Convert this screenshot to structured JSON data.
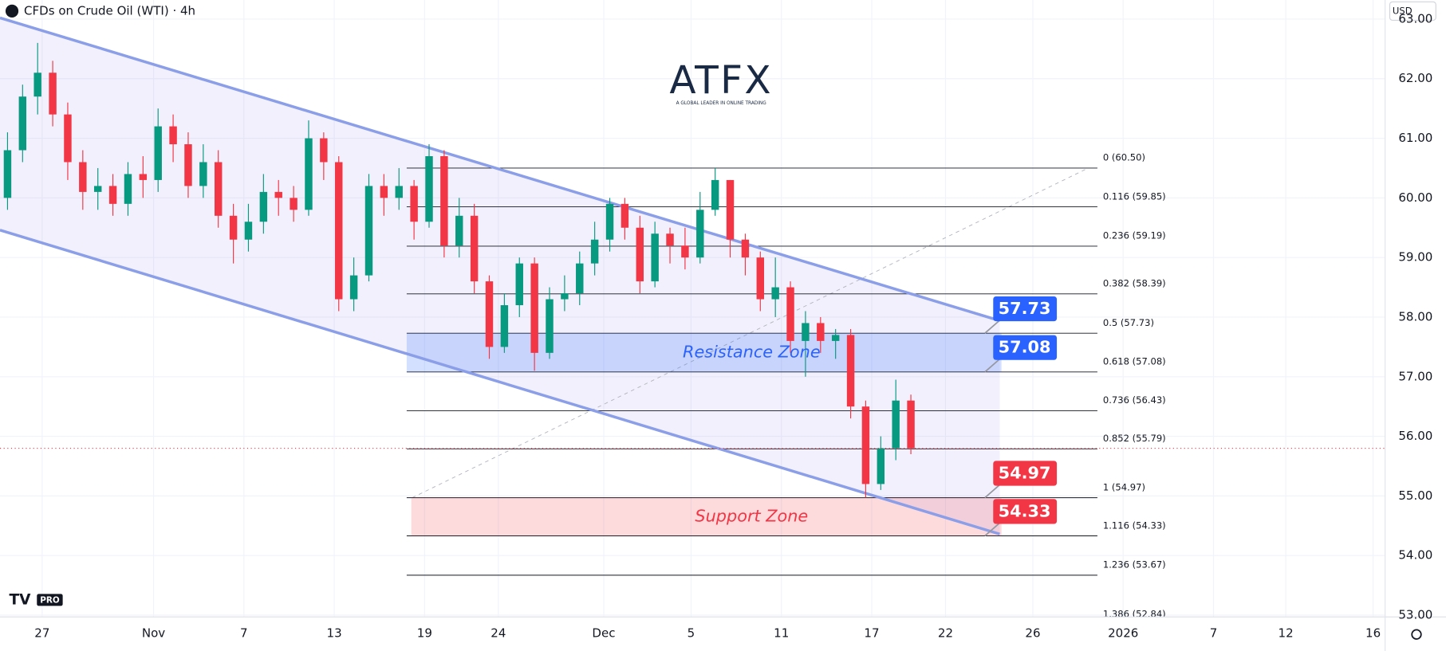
{
  "chart_data": {
    "type": "candlestick",
    "title": "CFDs on Crude Oil (WTI) · 4h",
    "currency": "USD",
    "logo": {
      "name": "ATFX",
      "tagline": "A GLOBAL LEADER IN ONLINE TRADING"
    },
    "badge": "PRO",
    "xlim": [
      0,
      92
    ],
    "xticks": [
      {
        "value": 2.8,
        "label": "27"
      },
      {
        "value": 10.2,
        "label": "Nov"
      },
      {
        "value": 16.2,
        "label": "7"
      },
      {
        "value": 22.2,
        "label": "13"
      },
      {
        "value": 28.2,
        "label": "19"
      },
      {
        "value": 33.1,
        "label": "24"
      },
      {
        "value": 40.1,
        "label": "Dec"
      },
      {
        "value": 45.9,
        "label": "5"
      },
      {
        "value": 51.9,
        "label": "11"
      },
      {
        "value": 57.9,
        "label": "17"
      },
      {
        "value": 62.8,
        "label": "22"
      },
      {
        "value": 68.6,
        "label": "26"
      },
      {
        "value": 74.6,
        "label": "2026"
      },
      {
        "value": 80.6,
        "label": "7"
      },
      {
        "value": 85.4,
        "label": "12"
      },
      {
        "value": 91.2,
        "label": "16"
      }
    ],
    "ylim": [
      52.97,
      63.32
    ],
    "yticks": [
      {
        "value": 53,
        "label": "53.00"
      },
      {
        "value": 54,
        "label": "54.00"
      },
      {
        "value": 55,
        "label": "55.00"
      },
      {
        "value": 56,
        "label": "56.00"
      },
      {
        "value": 57,
        "label": "57.00"
      },
      {
        "value": 58,
        "label": "58.00"
      },
      {
        "value": 59,
        "label": "59.00"
      },
      {
        "value": 60,
        "label": "60.00"
      },
      {
        "value": 61,
        "label": "61.00"
      },
      {
        "value": 62,
        "label": "62.00"
      },
      {
        "value": 63,
        "label": "63.00"
      }
    ],
    "grid": true,
    "up_color": "#089981",
    "down_color": "#f23645",
    "x": [
      0.5,
      1.5,
      2.5,
      3.5,
      4.5,
      5.5,
      6.5,
      7.5,
      8.5,
      9.5,
      10.5,
      11.5,
      12.5,
      13.5,
      14.5,
      15.5,
      16.5,
      17.5,
      18.5,
      19.5,
      20.5,
      21.5,
      22.5,
      23.5,
      24.5,
      25.5,
      26.5,
      27.5,
      28.5,
      29.5,
      30.5,
      31.5,
      32.5,
      33.5,
      34.5,
      35.5,
      36.5,
      37.5,
      38.5,
      39.5,
      40.5,
      41.5,
      42.5,
      43.5,
      44.5,
      45.5,
      46.5,
      47.5,
      48.5,
      49.5,
      50.5,
      51.5,
      52.5,
      53.5,
      54.5,
      55.5,
      56.5,
      57.5,
      58.5,
      59.5,
      60.5
    ],
    "open": [
      60.0,
      60.8,
      61.7,
      62.1,
      61.4,
      60.6,
      60.1,
      60.2,
      59.9,
      60.4,
      60.3,
      61.2,
      60.9,
      60.2,
      60.6,
      59.7,
      59.3,
      59.6,
      60.1,
      60.0,
      59.8,
      61.0,
      60.6,
      58.3,
      58.7,
      60.2,
      60.0,
      60.2,
      59.6,
      60.7,
      59.2,
      59.7,
      58.6,
      57.5,
      58.2,
      58.9,
      57.4,
      58.3,
      58.4,
      58.9,
      59.3,
      59.9,
      59.5,
      58.6,
      59.4,
      59.2,
      59.0,
      59.8,
      60.3,
      59.3,
      59.0,
      58.3,
      58.5,
      57.6,
      57.9,
      57.6,
      57.7,
      56.5,
      55.2,
      55.8,
      56.6
    ],
    "high": [
      61.1,
      61.9,
      62.6,
      62.3,
      61.6,
      60.8,
      60.5,
      60.4,
      60.6,
      60.7,
      61.5,
      61.4,
      61.1,
      60.9,
      60.8,
      59.9,
      59.9,
      60.4,
      60.3,
      60.2,
      61.3,
      61.1,
      60.7,
      59.0,
      60.4,
      60.4,
      60.5,
      60.3,
      60.9,
      60.8,
      60.0,
      59.9,
      58.7,
      58.4,
      59.0,
      59.0,
      58.5,
      58.7,
      59.1,
      59.6,
      60.0,
      60.0,
      59.7,
      59.6,
      59.5,
      59.5,
      60.1,
      60.5,
      60.3,
      59.4,
      59.1,
      59.0,
      58.6,
      58.1,
      58.0,
      57.8,
      57.8,
      56.6,
      56.0,
      56.95,
      56.7
    ],
    "low": [
      59.8,
      60.6,
      61.4,
      61.2,
      60.3,
      59.8,
      59.8,
      59.7,
      59.7,
      60.0,
      60.1,
      60.6,
      60.0,
      60.0,
      59.5,
      58.9,
      59.1,
      59.4,
      59.7,
      59.6,
      59.7,
      60.3,
      58.1,
      58.1,
      58.6,
      59.7,
      59.8,
      59.3,
      59.5,
      59.0,
      59.0,
      58.4,
      57.3,
      57.4,
      58.0,
      57.1,
      57.3,
      58.1,
      58.2,
      58.7,
      59.1,
      59.3,
      58.4,
      58.5,
      58.9,
      58.8,
      58.9,
      59.7,
      59.0,
      58.7,
      58.1,
      58.0,
      57.4,
      57.0,
      57.4,
      57.3,
      56.3,
      54.97,
      55.1,
      55.6,
      55.7
    ],
    "close": [
      60.8,
      61.7,
      62.1,
      61.4,
      60.6,
      60.1,
      60.2,
      59.9,
      60.4,
      60.3,
      61.2,
      60.9,
      60.2,
      60.6,
      59.7,
      59.3,
      59.6,
      60.1,
      60.0,
      59.8,
      61.0,
      60.6,
      58.3,
      58.7,
      60.2,
      60.0,
      60.2,
      59.6,
      60.7,
      59.2,
      59.7,
      58.6,
      57.5,
      58.2,
      58.9,
      57.4,
      58.3,
      58.4,
      58.9,
      59.3,
      59.9,
      59.5,
      58.6,
      59.4,
      59.2,
      59.0,
      59.8,
      60.3,
      59.3,
      59.0,
      58.3,
      58.5,
      57.6,
      57.9,
      57.6,
      57.7,
      56.5,
      55.2,
      55.8,
      56.6,
      55.8
    ],
    "channel": {
      "x": [
        0,
        66.4
      ],
      "upper": [
        63.02,
        57.94
      ],
      "lower": [
        59.46,
        54.36
      ],
      "color": "#8b9ee8"
    },
    "fib_levels": [
      {
        "label": "0 (60.50)",
        "value": 60.5
      },
      {
        "label": "0.116 (59.85)",
        "value": 59.85
      },
      {
        "label": "0.236 (59.19)",
        "value": 59.19
      },
      {
        "label": "0.382 (58.39)",
        "value": 58.39
      },
      {
        "label": "0.5 (57.73)",
        "value": 57.73
      },
      {
        "label": "0.618 (57.08)",
        "value": 57.08
      },
      {
        "label": "0.736 (56.43)",
        "value": 56.43
      },
      {
        "label": "0.852 (55.79)",
        "value": 55.79
      },
      {
        "label": "1 (54.97)",
        "value": 54.97
      },
      {
        "label": "1.116 (54.33)",
        "value": 54.33
      },
      {
        "label": "1.236 (53.67)",
        "value": 53.67
      },
      {
        "label": "1.386 (52.84)",
        "value": 52.84
      }
    ],
    "zones": [
      {
        "label": "Resistance Zone",
        "top": 57.73,
        "bottom": 57.08,
        "color": "#2962ff"
      },
      {
        "label": "Support Zone",
        "top": 54.97,
        "bottom": 54.33,
        "color": "#f23645"
      }
    ]
  }
}
